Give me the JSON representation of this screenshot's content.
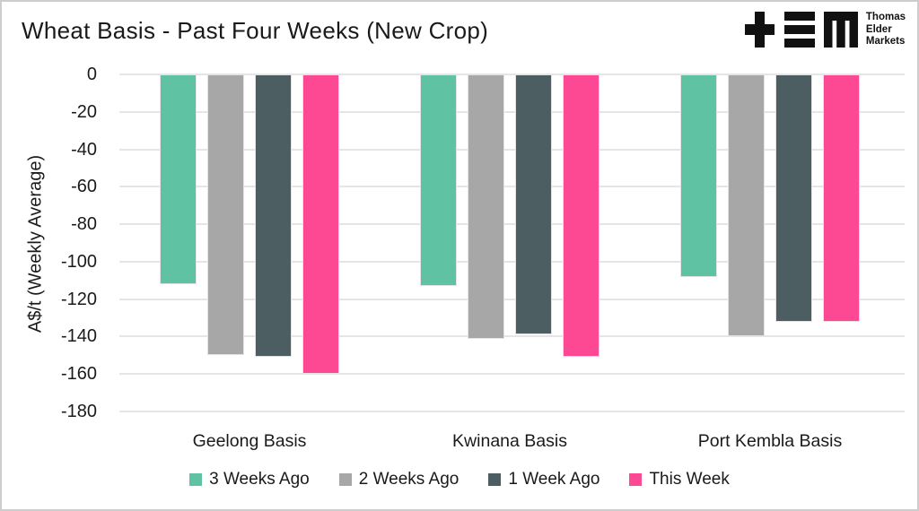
{
  "header": {
    "title": "Wheat Basis - Past Four Weeks (New Crop)",
    "brand": [
      "Thomas",
      "Elder",
      "Markets"
    ]
  },
  "chart_data": {
    "type": "bar",
    "title": "Wheat Basis - Past Four Weeks (New Crop)",
    "ylabel": "A$/t (Weekly Average)",
    "ylim": [
      -180,
      0
    ],
    "yticks": [
      0,
      -20,
      -40,
      -60,
      -80,
      -100,
      -120,
      -140,
      -160,
      -180
    ],
    "grid": true,
    "legend_position": "bottom",
    "categories": [
      "Geelong Basis",
      "Kwinana Basis",
      "Port Kembla Basis"
    ],
    "series": [
      {
        "name": "3 Weeks Ago",
        "color": "#5FC3A3",
        "values": [
          -112,
          -113,
          -108
        ]
      },
      {
        "name": "2 Weeks Ago",
        "color": "#A7A7A7",
        "values": [
          -150,
          -141,
          -140
        ]
      },
      {
        "name": "1 Week Ago",
        "color": "#4C5E62",
        "values": [
          -151,
          -139,
          -132
        ]
      },
      {
        "name": "This Week",
        "color": "#FD4894",
        "values": [
          -160,
          -151,
          -132
        ]
      }
    ],
    "colors": {
      "gridline": "#e5e5e5",
      "text": "#1a1a1a",
      "logo": "#111111"
    }
  }
}
